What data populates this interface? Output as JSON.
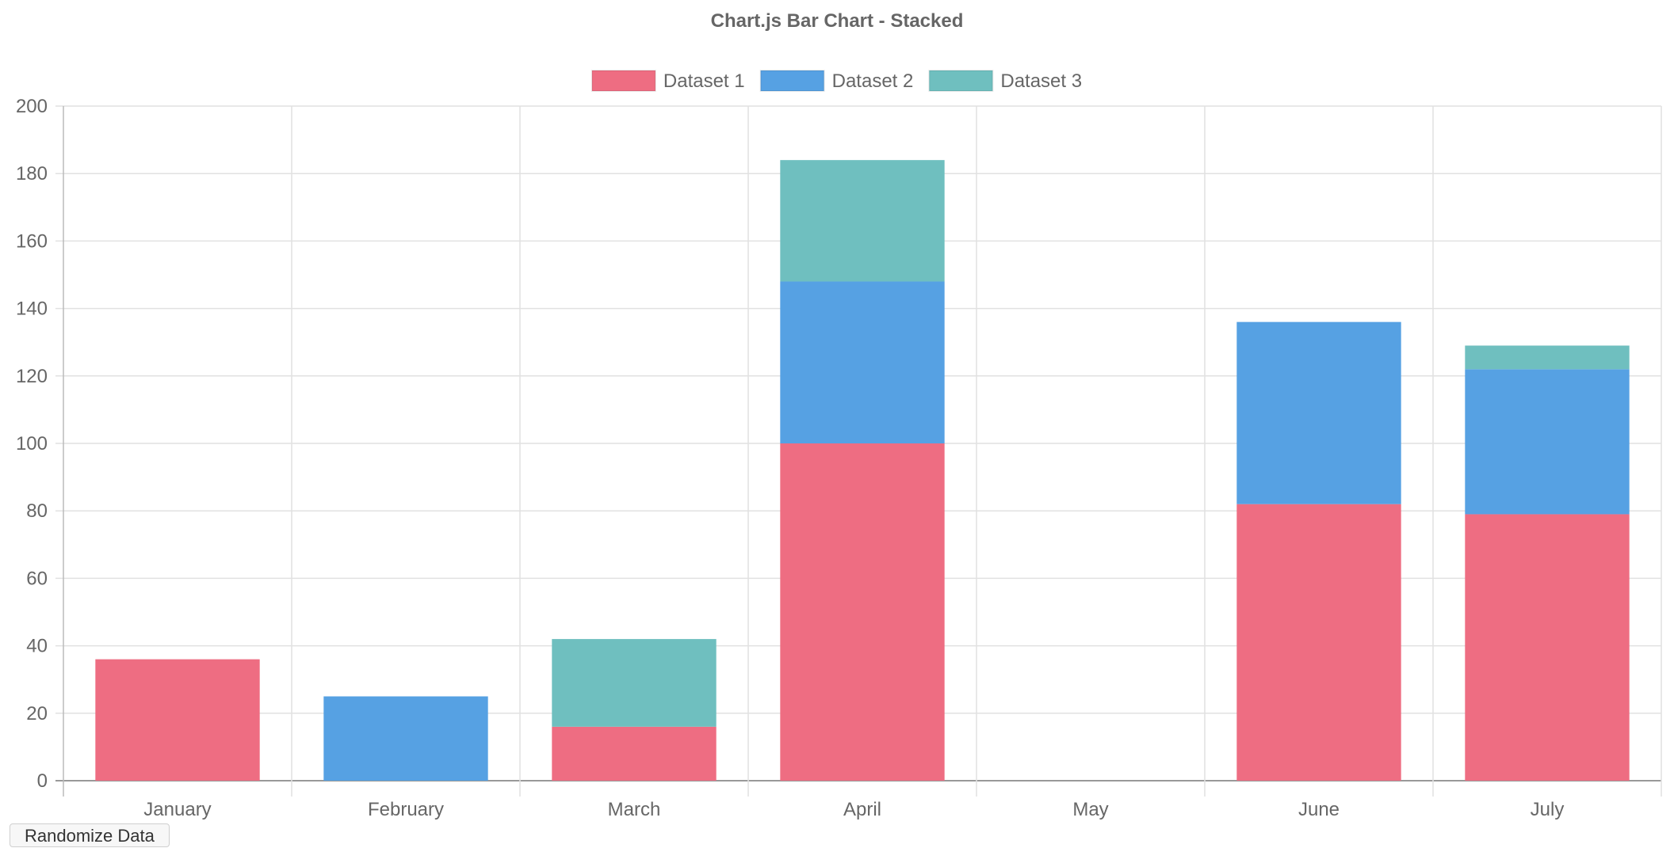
{
  "chart_data": {
    "type": "bar",
    "stacked": true,
    "title": "Chart.js Bar Chart - Stacked",
    "categories": [
      "January",
      "February",
      "March",
      "April",
      "May",
      "June",
      "July"
    ],
    "series": [
      {
        "name": "Dataset 1",
        "color": "#ee6d82",
        "values": [
          36,
          0,
          16,
          100,
          0,
          82,
          79
        ]
      },
      {
        "name": "Dataset 2",
        "color": "#56a1e3",
        "values": [
          0,
          25,
          0,
          48,
          0,
          54,
          43
        ]
      },
      {
        "name": "Dataset 3",
        "color": "#6fbfbf",
        "values": [
          0,
          0,
          26,
          36,
          0,
          0,
          7
        ]
      }
    ],
    "ylim": [
      0,
      200
    ],
    "yticks": [
      0,
      20,
      40,
      60,
      80,
      100,
      120,
      140,
      160,
      180,
      200
    ],
    "grid": true,
    "legend_position": "top"
  },
  "controls": {
    "randomize_label": "Randomize Data"
  }
}
